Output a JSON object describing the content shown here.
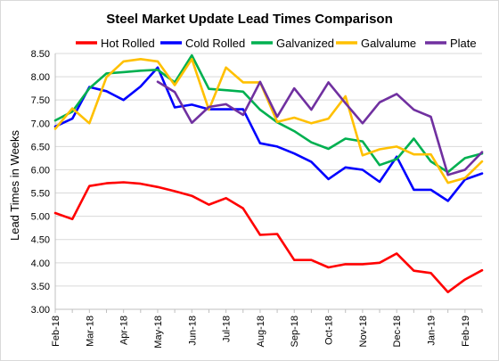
{
  "chart_data": {
    "type": "line",
    "title": "Steel Market Update Lead Times Comparison",
    "xlabel": "",
    "ylabel": "Lead Times in Weeks",
    "ylim": [
      3.0,
      8.5
    ],
    "yticks": [
      "3.00",
      "3.50",
      "4.00",
      "4.50",
      "5.00",
      "5.50",
      "6.00",
      "6.50",
      "7.00",
      "7.50",
      "8.00",
      "8.50"
    ],
    "grid": true,
    "legend_position": "top",
    "x_tick_labels": [
      "Feb-18",
      "Mar-18",
      "Apr-18",
      "May-18",
      "Jun-18",
      "Jul-18",
      "Aug-18",
      "Sep-18",
      "Oct-18",
      "Nov-18",
      "Dec-18",
      "Jan-19",
      "Feb-19"
    ],
    "x_tick_positions": [
      0,
      2,
      4,
      6,
      8,
      10,
      12,
      14,
      16,
      18,
      20,
      22,
      24
    ],
    "x": [
      0,
      1,
      2,
      3,
      4,
      5,
      6,
      7,
      8,
      9,
      10,
      11,
      12,
      13,
      14,
      15,
      16,
      17,
      18,
      19,
      20,
      21,
      22,
      23,
      24,
      25
    ],
    "series": [
      {
        "name": "Hot Rolled",
        "color": "#ff0000",
        "values": [
          5.07,
          4.94,
          5.65,
          5.71,
          5.73,
          5.7,
          5.63,
          5.54,
          5.44,
          5.25,
          5.39,
          5.17,
          4.6,
          4.62,
          4.06,
          4.06,
          3.9,
          3.97,
          3.97,
          4.0,
          4.2,
          3.83,
          3.78,
          3.37,
          3.64,
          3.84
        ]
      },
      {
        "name": "Cold Rolled",
        "color": "#0000ff",
        "values": [
          6.93,
          7.1,
          7.78,
          7.69,
          7.5,
          7.79,
          8.2,
          7.34,
          7.4,
          7.3,
          7.3,
          7.3,
          6.57,
          6.5,
          6.35,
          6.17,
          5.8,
          6.05,
          6.0,
          5.74,
          6.28,
          5.57,
          5.57,
          5.33,
          5.79,
          5.92
        ]
      },
      {
        "name": "Galvanized",
        "color": "#00b050",
        "values": [
          7.06,
          7.25,
          7.75,
          8.07,
          8.1,
          8.13,
          8.15,
          7.88,
          8.46,
          7.74,
          7.71,
          7.68,
          7.29,
          7.02,
          6.83,
          6.59,
          6.45,
          6.67,
          6.61,
          6.1,
          6.23,
          6.67,
          6.18,
          5.95,
          6.25,
          6.35
        ]
      },
      {
        "name": "Galvalume",
        "color": "#ffc000",
        "values": [
          6.88,
          7.32,
          7.0,
          7.99,
          8.33,
          8.38,
          8.33,
          7.82,
          8.38,
          7.29,
          8.2,
          7.88,
          7.88,
          7.03,
          7.12,
          7.0,
          7.1,
          7.58,
          6.31,
          6.44,
          6.5,
          6.33,
          6.33,
          5.72,
          5.82,
          6.18
        ]
      },
      {
        "name": "Plate",
        "color": "#7030a0",
        "values": [
          null,
          null,
          null,
          null,
          null,
          null,
          7.89,
          7.67,
          7.01,
          7.35,
          7.41,
          7.18,
          7.89,
          7.14,
          7.75,
          7.29,
          7.88,
          7.43,
          7.0,
          7.45,
          7.63,
          7.29,
          7.14,
          5.89,
          6.0,
          6.38
        ]
      }
    ]
  }
}
